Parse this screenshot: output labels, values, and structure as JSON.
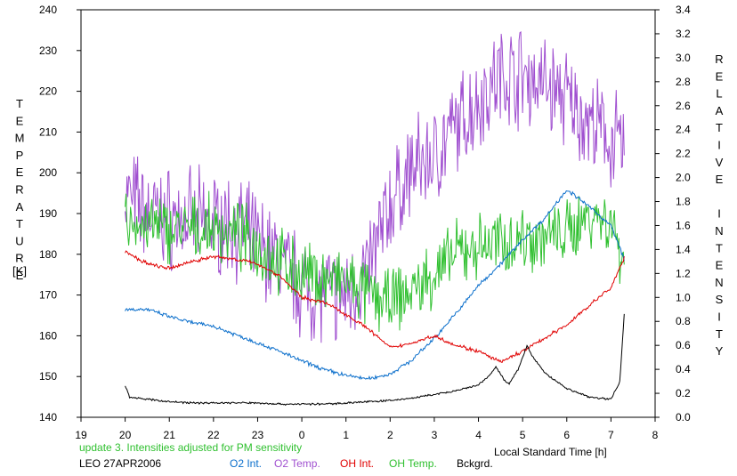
{
  "chart_data": {
    "type": "line",
    "xlabel": "Local Standard Time [h]",
    "ylabel_left": "TEMPERATURE",
    "ylabel_left_unit": "[K]",
    "ylabel_right": "RELATIVE INTENSITY",
    "x_ticks": [
      19,
      20,
      21,
      22,
      23,
      0,
      1,
      2,
      3,
      4,
      5,
      6,
      7,
      8
    ],
    "xlim": [
      19,
      8
    ],
    "ylim_left": [
      140,
      240
    ],
    "y_ticks_left": [
      140,
      150,
      160,
      170,
      180,
      190,
      200,
      210,
      220,
      230,
      240
    ],
    "ylim_right": [
      0,
      3.4
    ],
    "y_ticks_right": [
      "0.0",
      "0.2",
      "0.4",
      "0.6",
      "0.8",
      "1.0",
      "1.2",
      "1.4",
      "1.6",
      "1.8",
      "2.0",
      "2.2",
      "2.4",
      "2.6",
      "2.8",
      "3.0",
      "3.2",
      "3.4"
    ],
    "grid": false,
    "annotation": "update 3. Intensities adjusted for PM sensitivity",
    "station": "LEO 27APR2006",
    "legend": [
      {
        "name": "O2 Int.",
        "color": "#0a6ecb"
      },
      {
        "name": "O2 Temp.",
        "color": "#a050d0"
      },
      {
        "name": "OH Int.",
        "color": "#e00000"
      },
      {
        "name": "OH Temp.",
        "color": "#30c030"
      },
      {
        "name": "Bckgrd.",
        "color": "#000000"
      }
    ],
    "series": [
      {
        "name": "O2 Temp.",
        "axis": "left",
        "color": "#a050d0",
        "noise": 9,
        "x": [
          20.0,
          20.5,
          21.0,
          21.5,
          22.0,
          22.5,
          23.0,
          23.5,
          0.0,
          0.5,
          1.0,
          1.5,
          2.0,
          2.5,
          3.0,
          3.5,
          4.0,
          4.5,
          5.0,
          5.5,
          6.0,
          6.5,
          7.0,
          7.3
        ],
        "values": [
          195,
          190,
          189,
          188,
          188,
          187,
          183,
          178,
          172,
          170,
          170,
          176,
          192,
          201,
          204,
          211,
          218,
          224,
          224,
          222,
          218,
          212,
          208,
          206
        ]
      },
      {
        "name": "OH Temp.",
        "axis": "left",
        "color": "#30c030",
        "noise": 6,
        "x": [
          20.0,
          20.5,
          21.0,
          21.5,
          22.0,
          22.5,
          23.0,
          23.5,
          0.0,
          0.5,
          1.0,
          1.5,
          2.0,
          2.5,
          3.0,
          3.5,
          4.0,
          4.5,
          5.0,
          5.5,
          6.0,
          6.5,
          7.0,
          7.3
        ],
        "values": [
          188,
          187,
          186,
          186,
          186,
          185,
          182,
          178,
          175,
          174,
          173,
          170,
          168,
          171,
          175,
          180,
          182,
          183,
          184,
          184,
          185,
          190,
          188,
          178
        ]
      },
      {
        "name": "O2 Int.",
        "axis": "right",
        "color": "#0a6ecb",
        "noise": 0.012,
        "x": [
          20.0,
          20.5,
          21.0,
          21.5,
          22.0,
          22.5,
          23.0,
          23.5,
          0.0,
          0.5,
          1.0,
          1.5,
          2.0,
          2.5,
          3.0,
          3.5,
          4.0,
          4.5,
          5.0,
          5.5,
          6.0,
          6.5,
          7.0,
          7.3
        ],
        "values": [
          0.9,
          0.9,
          0.84,
          0.79,
          0.76,
          0.69,
          0.62,
          0.55,
          0.47,
          0.4,
          0.35,
          0.32,
          0.36,
          0.48,
          0.66,
          0.87,
          1.1,
          1.28,
          1.48,
          1.66,
          1.9,
          1.76,
          1.6,
          1.32
        ]
      },
      {
        "name": "OH Int.",
        "axis": "right",
        "color": "#e00000",
        "noise": 0.012,
        "x": [
          20.0,
          20.5,
          21.0,
          21.5,
          22.0,
          22.5,
          23.0,
          23.5,
          0.0,
          0.5,
          1.0,
          1.5,
          2.0,
          2.5,
          3.0,
          3.5,
          4.0,
          4.5,
          5.0,
          5.5,
          6.0,
          6.5,
          7.0,
          7.3
        ],
        "values": [
          1.38,
          1.28,
          1.24,
          1.3,
          1.34,
          1.32,
          1.28,
          1.18,
          1.0,
          0.96,
          0.86,
          0.74,
          0.58,
          0.62,
          0.68,
          0.6,
          0.55,
          0.46,
          0.55,
          0.66,
          0.77,
          0.93,
          1.08,
          1.33
        ]
      },
      {
        "name": "Bckgrd.",
        "axis": "right",
        "color": "#000000",
        "noise": 0.006,
        "x": [
          20.0,
          20.1,
          20.5,
          21.0,
          21.5,
          22.0,
          22.5,
          23.0,
          23.5,
          0.0,
          0.5,
          1.0,
          1.5,
          2.0,
          2.5,
          3.0,
          3.5,
          4.0,
          4.2,
          4.4,
          4.6,
          4.7,
          4.9,
          5.0,
          5.1,
          5.2,
          5.5,
          6.0,
          6.5,
          7.0,
          7.2,
          7.3
        ],
        "values": [
          0.26,
          0.17,
          0.15,
          0.13,
          0.12,
          0.12,
          0.12,
          0.12,
          0.11,
          0.11,
          0.11,
          0.12,
          0.13,
          0.14,
          0.16,
          0.19,
          0.22,
          0.27,
          0.33,
          0.42,
          0.3,
          0.28,
          0.4,
          0.5,
          0.6,
          0.52,
          0.37,
          0.24,
          0.17,
          0.15,
          0.3,
          0.86
        ]
      }
    ]
  }
}
